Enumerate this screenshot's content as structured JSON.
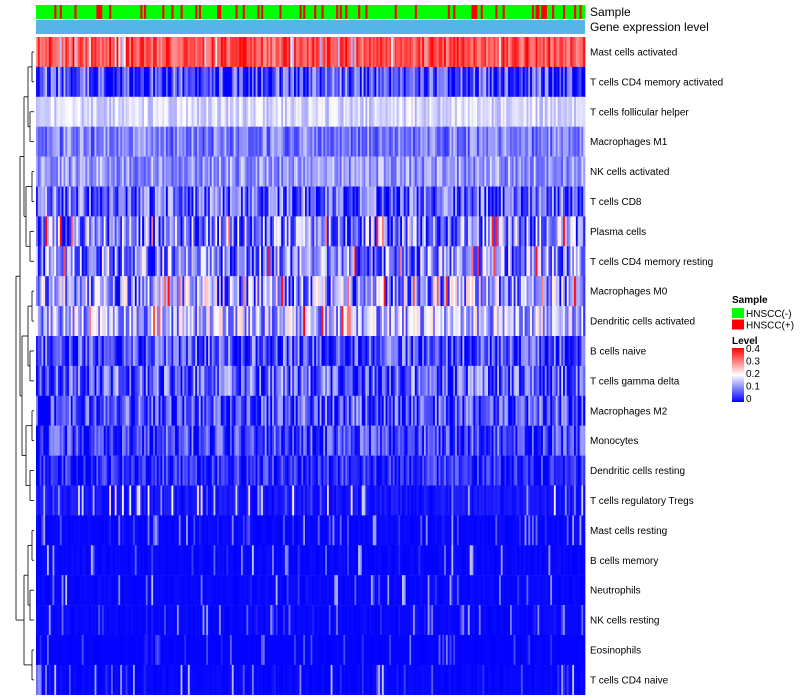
{
  "chart_data": {
    "type": "heatmap",
    "annotation_tracks": [
      "Sample",
      "Gene expression level"
    ],
    "rows": [
      {
        "label": "Mast cells activated",
        "mean": 0.34,
        "spread": 0.06,
        "pattern": "hot"
      },
      {
        "label": "T cells CD4 memory activated",
        "mean": 0.05,
        "spread": 0.1,
        "pattern": "dark"
      },
      {
        "label": "T cells follicular helper",
        "mean": 0.17,
        "spread": 0.04,
        "pattern": "light"
      },
      {
        "label": "Macrophages M1",
        "mean": 0.1,
        "spread": 0.06,
        "pattern": "mid"
      },
      {
        "label": "NK cells activated",
        "mean": 0.12,
        "spread": 0.06,
        "pattern": "mid"
      },
      {
        "label": "T cells CD8",
        "mean": 0.07,
        "spread": 0.1,
        "pattern": "dark"
      },
      {
        "label": "Plasma cells",
        "mean": 0.09,
        "spread": 0.12,
        "pattern": "mixed"
      },
      {
        "label": "T cells CD4 memory resting",
        "mean": 0.09,
        "spread": 0.12,
        "pattern": "mixed"
      },
      {
        "label": "Macrophages M0",
        "mean": 0.11,
        "spread": 0.13,
        "pattern": "mixed"
      },
      {
        "label": "Dendritic cells activated",
        "mean": 0.13,
        "spread": 0.1,
        "pattern": "mixed"
      },
      {
        "label": "B cells naive",
        "mean": 0.06,
        "spread": 0.09,
        "pattern": "dark"
      },
      {
        "label": "T cells gamma delta",
        "mean": 0.07,
        "spread": 0.1,
        "pattern": "dark"
      },
      {
        "label": "Macrophages M2",
        "mean": 0.06,
        "spread": 0.09,
        "pattern": "dark"
      },
      {
        "label": "Monocytes",
        "mean": 0.05,
        "spread": 0.08,
        "pattern": "dark"
      },
      {
        "label": "Dendritic cells resting",
        "mean": 0.03,
        "spread": 0.06,
        "pattern": "dark"
      },
      {
        "label": "T cells regulatory  Tregs",
        "mean": 0.03,
        "spread": 0.07,
        "pattern": "sparse"
      },
      {
        "label": "Mast cells resting",
        "mean": 0.01,
        "spread": 0.04,
        "pattern": "sparse"
      },
      {
        "label": "B cells memory",
        "mean": 0.01,
        "spread": 0.05,
        "pattern": "sparse"
      },
      {
        "label": "Neutrophils",
        "mean": 0.01,
        "spread": 0.05,
        "pattern": "sparse"
      },
      {
        "label": "NK cells resting",
        "mean": 0.01,
        "spread": 0.04,
        "pattern": "sparse"
      },
      {
        "label": "Eosinophils",
        "mean": 0.005,
        "spread": 0.03,
        "pattern": "sparse"
      },
      {
        "label": "T cells CD4 naive",
        "mean": 0.01,
        "spread": 0.05,
        "pattern": "sparse"
      }
    ],
    "n_samples": 300,
    "sample_groups": [
      {
        "name": "HNSCC(-)",
        "color": "#00FF00",
        "share": 0.83
      },
      {
        "name": "HNSCC(+)",
        "color": "#FF0000",
        "share": 0.17
      }
    ],
    "expression_track_color": "#56B4E9",
    "color_scale": {
      "title": "Level",
      "min": 0,
      "max": 0.4,
      "stops": [
        {
          "value": 0,
          "color": "#0000FF"
        },
        {
          "value": 0.2,
          "color": "#FFFFFF"
        },
        {
          "value": 0.4,
          "color": "#FF0000"
        }
      ],
      "ticks": [
        "0.4",
        "0.3",
        "0.2",
        "0.1",
        "0"
      ]
    },
    "legend": {
      "sample_title": "Sample",
      "level_title": "Level",
      "placement": "right"
    },
    "row_dendrogram": "left"
  }
}
